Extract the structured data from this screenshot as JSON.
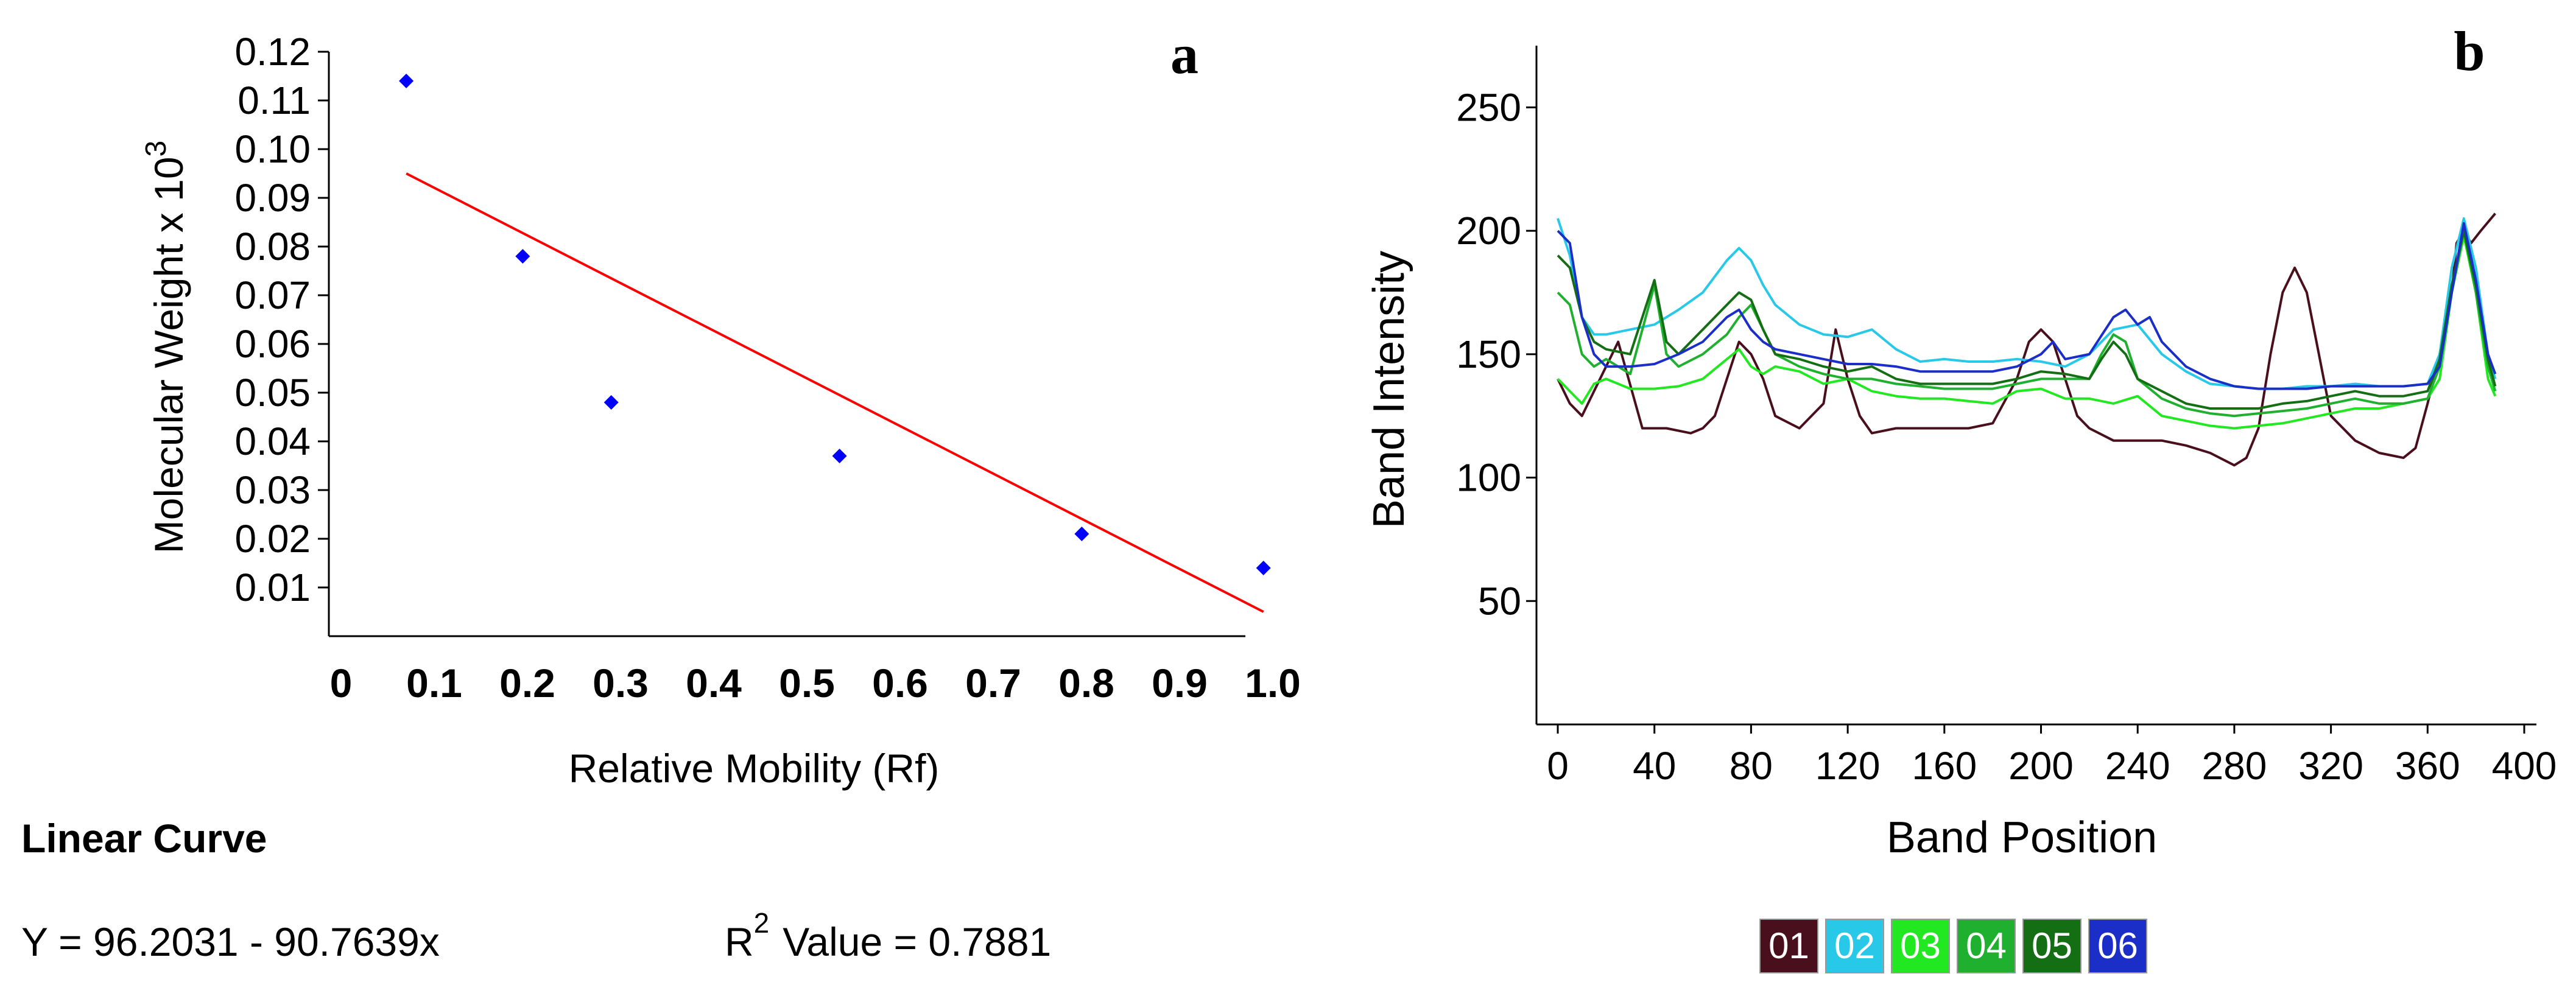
{
  "chart_data": [
    {
      "type": "scatter",
      "panel_label": "a",
      "xlabel": "Relative Mobility  (Rf)",
      "ylabel": "Molecular Weight x 10",
      "ylabel_superscript": "3",
      "xlim": [
        0,
        1.0
      ],
      "ylim": [
        0,
        0.12
      ],
      "x_ticks": [
        "0",
        "0.1",
        "0.2",
        "0.3",
        "0.4",
        "0.5",
        "0.6",
        "0.7",
        "0.8",
        "0.9",
        "1.0"
      ],
      "y_ticks": [
        "0.01",
        "0.02",
        "0.03",
        "0.04",
        "0.05",
        "0.06",
        "0.07",
        "0.08",
        "0.09",
        "0.10",
        "0.11",
        "0.12"
      ],
      "points": [
        {
          "x": 0.07,
          "y": 0.114
        },
        {
          "x": 0.195,
          "y": 0.078
        },
        {
          "x": 0.29,
          "y": 0.048
        },
        {
          "x": 0.535,
          "y": 0.037
        },
        {
          "x": 0.795,
          "y": 0.021
        },
        {
          "x": 0.99,
          "y": 0.014
        }
      ],
      "fit_line": {
        "x": [
          0.07,
          0.99
        ],
        "y": [
          0.095,
          0.005
        ],
        "color": "#ff0000"
      },
      "point_color": "#0000ff",
      "fit_title": "Linear Curve",
      "equation": "Y = 96.2031 - 90.7639x",
      "r2_label": "R",
      "r2_superscript": "2",
      "r2_value": "Value = 0.7881"
    },
    {
      "type": "line",
      "panel_label": "b",
      "xlabel": "Band Position",
      "ylabel": "Band Intensity",
      "xlim": [
        -5,
        400
      ],
      "ylim": [
        0,
        275
      ],
      "x_ticks": [
        "0",
        "40",
        "80",
        "120",
        "160",
        "200",
        "240",
        "280",
        "320",
        "360",
        "400"
      ],
      "y_ticks": [
        "50",
        "100",
        "150",
        "200",
        "250"
      ],
      "legend": [
        "01",
        "02",
        "03",
        "04",
        "05",
        "06"
      ],
      "series": [
        {
          "name": "01",
          "color": "#4a0f1c",
          "x": [
            0,
            5,
            10,
            20,
            25,
            35,
            45,
            55,
            60,
            65,
            70,
            75,
            80,
            85,
            90,
            100,
            110,
            115,
            120,
            125,
            130,
            140,
            150,
            160,
            170,
            180,
            190,
            195,
            200,
            205,
            210,
            215,
            220,
            230,
            240,
            250,
            260,
            270,
            280,
            285,
            290,
            295,
            300,
            305,
            310,
            315,
            320,
            330,
            340,
            350,
            355,
            360,
            365,
            370,
            372,
            375,
            378,
            382,
            388
          ],
          "y": [
            140,
            130,
            125,
            145,
            155,
            120,
            120,
            118,
            120,
            125,
            140,
            155,
            150,
            140,
            125,
            120,
            130,
            160,
            140,
            125,
            118,
            120,
            120,
            120,
            120,
            122,
            140,
            155,
            160,
            155,
            140,
            125,
            120,
            115,
            115,
            115,
            113,
            110,
            105,
            108,
            120,
            150,
            175,
            185,
            175,
            150,
            125,
            115,
            110,
            108,
            112,
            130,
            150,
            175,
            195,
            200,
            195,
            200,
            207
          ]
        },
        {
          "name": "02",
          "color": "#27c8e8",
          "x": [
            0,
            5,
            10,
            15,
            20,
            30,
            40,
            50,
            60,
            70,
            75,
            80,
            85,
            90,
            100,
            110,
            120,
            130,
            140,
            150,
            160,
            170,
            180,
            190,
            200,
            210,
            220,
            230,
            240,
            250,
            260,
            270,
            280,
            290,
            300,
            310,
            320,
            330,
            340,
            350,
            360,
            365,
            370,
            375,
            380,
            385,
            388
          ],
          "y": [
            205,
            190,
            165,
            158,
            158,
            160,
            162,
            168,
            175,
            188,
            193,
            188,
            178,
            170,
            162,
            158,
            157,
            160,
            152,
            147,
            148,
            147,
            147,
            148,
            147,
            145,
            150,
            160,
            162,
            150,
            143,
            138,
            137,
            136,
            136,
            137,
            137,
            138,
            137,
            137,
            138,
            150,
            185,
            205,
            185,
            150,
            140
          ]
        },
        {
          "name": "03",
          "color": "#22e822",
          "x": [
            0,
            5,
            10,
            15,
            20,
            30,
            40,
            50,
            60,
            70,
            75,
            80,
            85,
            90,
            100,
            110,
            120,
            130,
            140,
            150,
            160,
            170,
            180,
            190,
            200,
            210,
            220,
            230,
            240,
            250,
            260,
            270,
            280,
            290,
            300,
            310,
            320,
            330,
            340,
            350,
            360,
            365,
            370,
            375,
            380,
            385,
            388
          ],
          "y": [
            140,
            135,
            130,
            138,
            140,
            136,
            136,
            137,
            140,
            148,
            152,
            145,
            142,
            145,
            143,
            138,
            140,
            135,
            133,
            132,
            132,
            131,
            130,
            135,
            136,
            132,
            132,
            130,
            133,
            125,
            123,
            121,
            120,
            121,
            122,
            124,
            126,
            128,
            128,
            130,
            132,
            140,
            175,
            198,
            175,
            140,
            133
          ]
        },
        {
          "name": "04",
          "color": "#20b030",
          "x": [
            0,
            5,
            10,
            15,
            20,
            30,
            35,
            40,
            45,
            50,
            60,
            70,
            75,
            80,
            85,
            90,
            100,
            110,
            120,
            130,
            140,
            150,
            160,
            170,
            180,
            190,
            200,
            210,
            220,
            225,
            230,
            235,
            240,
            250,
            260,
            270,
            280,
            290,
            300,
            310,
            320,
            330,
            340,
            350,
            360,
            365,
            370,
            375,
            380,
            385,
            388
          ],
          "y": [
            175,
            170,
            150,
            145,
            148,
            142,
            160,
            178,
            150,
            145,
            150,
            158,
            165,
            170,
            160,
            150,
            145,
            142,
            140,
            140,
            138,
            137,
            136,
            136,
            136,
            138,
            140,
            140,
            140,
            150,
            158,
            155,
            140,
            132,
            128,
            126,
            125,
            126,
            127,
            128,
            130,
            132,
            130,
            130,
            132,
            145,
            175,
            200,
            175,
            145,
            135
          ]
        },
        {
          "name": "05",
          "color": "#146e14",
          "x": [
            0,
            5,
            10,
            15,
            20,
            30,
            35,
            40,
            45,
            50,
            60,
            70,
            75,
            80,
            85,
            90,
            100,
            110,
            120,
            130,
            140,
            150,
            160,
            170,
            180,
            190,
            200,
            210,
            220,
            225,
            230,
            235,
            240,
            250,
            260,
            270,
            280,
            290,
            300,
            310,
            320,
            330,
            340,
            350,
            360,
            365,
            370,
            375,
            380,
            385,
            388
          ],
          "y": [
            190,
            185,
            165,
            155,
            152,
            150,
            165,
            180,
            155,
            150,
            160,
            170,
            175,
            172,
            160,
            150,
            148,
            145,
            143,
            145,
            140,
            138,
            138,
            138,
            138,
            140,
            143,
            142,
            140,
            148,
            155,
            150,
            140,
            135,
            130,
            128,
            128,
            128,
            130,
            131,
            133,
            135,
            133,
            133,
            135,
            148,
            178,
            200,
            178,
            148,
            137
          ]
        },
        {
          "name": "06",
          "color": "#1c2ec8",
          "x": [
            0,
            5,
            10,
            15,
            20,
            30,
            40,
            50,
            60,
            70,
            75,
            80,
            85,
            90,
            100,
            110,
            120,
            130,
            140,
            150,
            160,
            170,
            180,
            190,
            200,
            205,
            210,
            220,
            230,
            235,
            240,
            245,
            250,
            260,
            270,
            280,
            290,
            300,
            310,
            320,
            330,
            340,
            350,
            360,
            365,
            370,
            375,
            380,
            385,
            388
          ],
          "y": [
            200,
            195,
            165,
            150,
            145,
            145,
            146,
            150,
            155,
            165,
            168,
            160,
            155,
            152,
            150,
            148,
            146,
            146,
            145,
            143,
            143,
            143,
            143,
            145,
            150,
            155,
            148,
            150,
            165,
            168,
            162,
            165,
            155,
            145,
            140,
            137,
            136,
            136,
            136,
            137,
            137,
            137,
            137,
            138,
            145,
            175,
            203,
            180,
            150,
            142
          ]
        }
      ]
    }
  ]
}
